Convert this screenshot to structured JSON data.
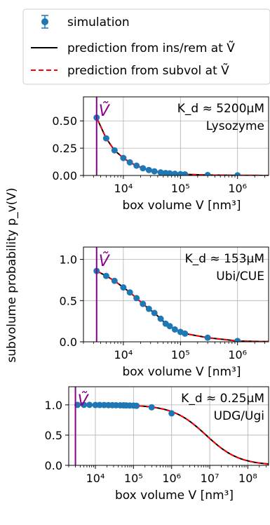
{
  "legend": {
    "entries": [
      {
        "label": "simulation",
        "style": "errorbar-marker",
        "color": "#1f77b4"
      },
      {
        "label": "prediction from ins/rem at Ṽ",
        "style": "solid",
        "color": "#000000"
      },
      {
        "label": "prediction from subvol at Ṽ",
        "style": "dashed",
        "color": "#ff0000"
      }
    ]
  },
  "shared_ylabel": "subvolume probability p_v(V)",
  "colors": {
    "marker": "#1f77b4",
    "solid": "#000000",
    "dashed": "#ff0000",
    "vline": "#8b008b",
    "grid": "#b0b0b0"
  },
  "chart_data": [
    {
      "type": "line",
      "xscale": "log",
      "xlabel": "box volume V [nm³]",
      "xlim": [
        2000,
        3500000
      ],
      "ylim": [
        0,
        0.72
      ],
      "xticks": [
        10000,
        100000,
        1000000
      ],
      "xtick_labels": [
        "10⁴",
        "10⁵",
        "10⁶"
      ],
      "yticks": [
        0,
        0.25,
        0.5
      ],
      "ytick_labels": [
        "0.00",
        "0.25",
        "0.50"
      ],
      "grid": true,
      "vline": {
        "x": 3400,
        "label": "Ṽ"
      },
      "annotation": [
        "K_d ≈ 5200μM",
        "Lysozyme"
      ],
      "model": {
        "kind": "exp",
        "c": 0.00018
      },
      "series": [
        {
          "name": "simulation",
          "x": [
            3400,
            5000,
            7000,
            10000,
            13000,
            17000,
            22000,
            28000,
            35000,
            45000,
            55000,
            65000,
            80000,
            100000,
            120000,
            300000,
            1000000
          ],
          "y": [
            0.53,
            0.34,
            0.23,
            0.16,
            0.12,
            0.09,
            0.066,
            0.05,
            0.038,
            0.028,
            0.022,
            0.019,
            0.015,
            0.012,
            0.01,
            0.004,
            0.001
          ]
        }
      ]
    },
    {
      "type": "line",
      "xscale": "log",
      "xlabel": "box volume V [nm³]",
      "xlim": [
        2000,
        3500000
      ],
      "ylim": [
        0,
        1.15
      ],
      "xticks": [
        10000,
        100000,
        1000000
      ],
      "xtick_labels": [
        "10⁴",
        "10⁵",
        "10⁶"
      ],
      "yticks": [
        0,
        0.5,
        1.0
      ],
      "ytick_labels": [
        "0.0",
        "0.5",
        "1.0"
      ],
      "grid": true,
      "vline": {
        "x": 3400,
        "label": "Ṽ"
      },
      "annotation": [
        "K_d ≈ 153μM",
        "Ubi/CUE"
      ],
      "model": {
        "kind": "exp",
        "c": 0.0063
      },
      "series": [
        {
          "name": "simulation",
          "x": [
            3400,
            5000,
            7000,
            10000,
            13000,
            17000,
            22000,
            28000,
            35000,
            45000,
            55000,
            65000,
            80000,
            100000,
            120000,
            300000,
            1000000
          ],
          "y": [
            0.86,
            0.8,
            0.74,
            0.66,
            0.6,
            0.53,
            0.46,
            0.4,
            0.35,
            0.28,
            0.22,
            0.19,
            0.15,
            0.12,
            0.1,
            0.05,
            0.01
          ]
        }
      ]
    },
    {
      "type": "line",
      "xscale": "log",
      "xlabel": "box volume V [nm³]",
      "xlim": [
        2000,
        350000000
      ],
      "ylim": [
        0,
        1.3
      ],
      "xticks": [
        10000,
        100000,
        1000000,
        10000000,
        100000000
      ],
      "xtick_labels": [
        "10⁴",
        "10⁵",
        "10⁶",
        "10⁷",
        "10⁸"
      ],
      "yticks": [
        0,
        0.5,
        1.0
      ],
      "ytick_labels": [
        "0.0",
        "0.5",
        "1.0"
      ],
      "grid": true,
      "vline": {
        "x": 3000,
        "label": "Ṽ"
      },
      "annotation": [
        "K_d ≈ 0.25μM",
        "UDG/Ugi"
      ],
      "model": {
        "kind": "hill",
        "v0": 8000000,
        "n": 1.0
      },
      "series": [
        {
          "name": "simulation",
          "x": [
            3400,
            5000,
            7000,
            10000,
            13000,
            17000,
            22000,
            28000,
            35000,
            45000,
            55000,
            65000,
            80000,
            100000,
            120000,
            300000,
            1000000
          ],
          "y": [
            1.0,
            1.0,
            1.0,
            0.998,
            0.998,
            0.997,
            0.996,
            0.995,
            0.994,
            0.993,
            0.992,
            0.991,
            0.99,
            0.988,
            0.985,
            0.96,
            0.86
          ]
        }
      ]
    }
  ]
}
